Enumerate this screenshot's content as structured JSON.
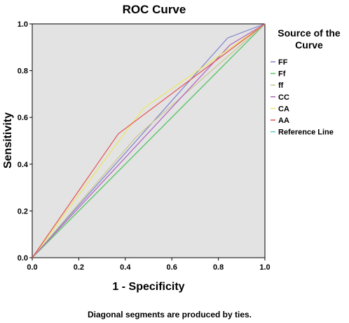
{
  "chart_data": {
    "type": "line",
    "title": "ROC Curve",
    "xlabel": "1 - Specificity",
    "ylabel": "Sensitivity",
    "xlim": [
      0,
      1
    ],
    "ylim": [
      0,
      1
    ],
    "x_ticks": [
      "0.0",
      "0.2",
      "0.4",
      "0.6",
      "0.8",
      "1.0"
    ],
    "y_ticks": [
      "0.0",
      "0.2",
      "0.4",
      "0.6",
      "0.8",
      "1.0"
    ],
    "grid": false,
    "legend": {
      "title": "Source of the Curve",
      "title_lines": [
        "Source of the",
        "Curve"
      ],
      "position": "right"
    },
    "footnote": "Diagonal segments are produced by ties.",
    "background_color": "#e3e3e3",
    "series": [
      {
        "name": "FF",
        "color": "#8080d0",
        "x": [
          0,
          0.84,
          1
        ],
        "y": [
          0,
          0.94,
          1
        ]
      },
      {
        "name": "Ff",
        "color": "#5cc45c",
        "x": [
          0,
          0.87,
          1
        ],
        "y": [
          0,
          0.87,
          1
        ]
      },
      {
        "name": "ff",
        "color": "#c8c890",
        "x": [
          0,
          0.45,
          1
        ],
        "y": [
          0,
          0.52,
          1
        ]
      },
      {
        "name": "CC",
        "color": "#b060c0",
        "x": [
          0,
          0.85,
          1
        ],
        "y": [
          0,
          0.91,
          1
        ]
      },
      {
        "name": "CA",
        "color": "#e8e860",
        "x": [
          0,
          0.41,
          0.48,
          1
        ],
        "y": [
          0,
          0.55,
          0.64,
          1
        ]
      },
      {
        "name": "AA",
        "color": "#e85050",
        "x": [
          0,
          0.37,
          1
        ],
        "y": [
          0,
          0.53,
          1
        ]
      },
      {
        "name": "Reference Line",
        "color": "#60c8c0",
        "x": [
          0,
          1
        ],
        "y": [
          0,
          1
        ]
      }
    ]
  }
}
